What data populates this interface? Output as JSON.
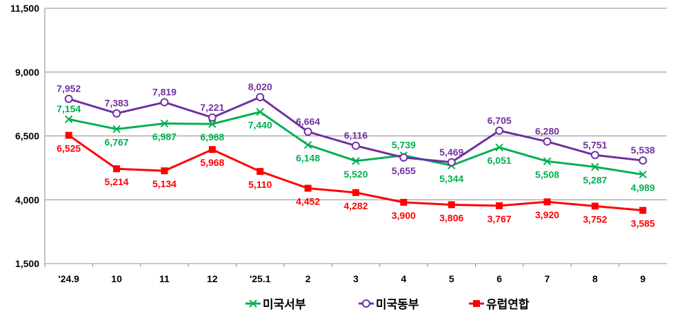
{
  "chart_data": {
    "type": "line",
    "title": "",
    "xlabel": "",
    "ylabel": "",
    "categories": [
      "'24.9",
      "10",
      "11",
      "12",
      "'25.1",
      "2",
      "3",
      "4",
      "5",
      "6",
      "7",
      "8",
      "9"
    ],
    "ylim": [
      1500,
      11500
    ],
    "yticks": [
      "1,500",
      "4,000",
      "6,500",
      "9,000",
      "11,500"
    ],
    "ytick_values": [
      1500,
      4000,
      6500,
      9000,
      11500
    ],
    "grid": true,
    "legend_position": "bottom",
    "series": [
      {
        "name": "미국서부",
        "color": "#00b050",
        "marker": "x",
        "values": [
          7154,
          6767,
          6987,
          6968,
          7440,
          6148,
          5520,
          5739,
          5344,
          6051,
          5508,
          5287,
          4989
        ],
        "labels": [
          "7,154",
          "6,767",
          "6,987",
          "6,968",
          "7,440",
          "6,148",
          "5,520",
          "5,739",
          "5,344",
          "6,051",
          "5,508",
          "5,287",
          "4,989"
        ]
      },
      {
        "name": "미국동부",
        "color": "#7030a0",
        "marker": "circle",
        "values": [
          7952,
          7383,
          7819,
          7221,
          8020,
          6664,
          6116,
          5655,
          5469,
          6705,
          6280,
          5751,
          5538
        ],
        "labels": [
          "7,952",
          "7,383",
          "7,819",
          "7,221",
          "8,020",
          "6,664",
          "6,116",
          "5,655",
          "5,469",
          "6,705",
          "6,280",
          "5,751",
          "5,538"
        ]
      },
      {
        "name": "유럽연합",
        "color": "#ff0000",
        "marker": "square",
        "values": [
          6525,
          5214,
          5134,
          5968,
          5110,
          4452,
          4282,
          3900,
          3806,
          3767,
          3920,
          3752,
          3585
        ],
        "labels": [
          "6,525",
          "5,214",
          "5,134",
          "5,968",
          "5,110",
          "4,452",
          "4,282",
          "3,900",
          "3,806",
          "3,767",
          "3,920",
          "3,752",
          "3,585"
        ]
      }
    ]
  }
}
